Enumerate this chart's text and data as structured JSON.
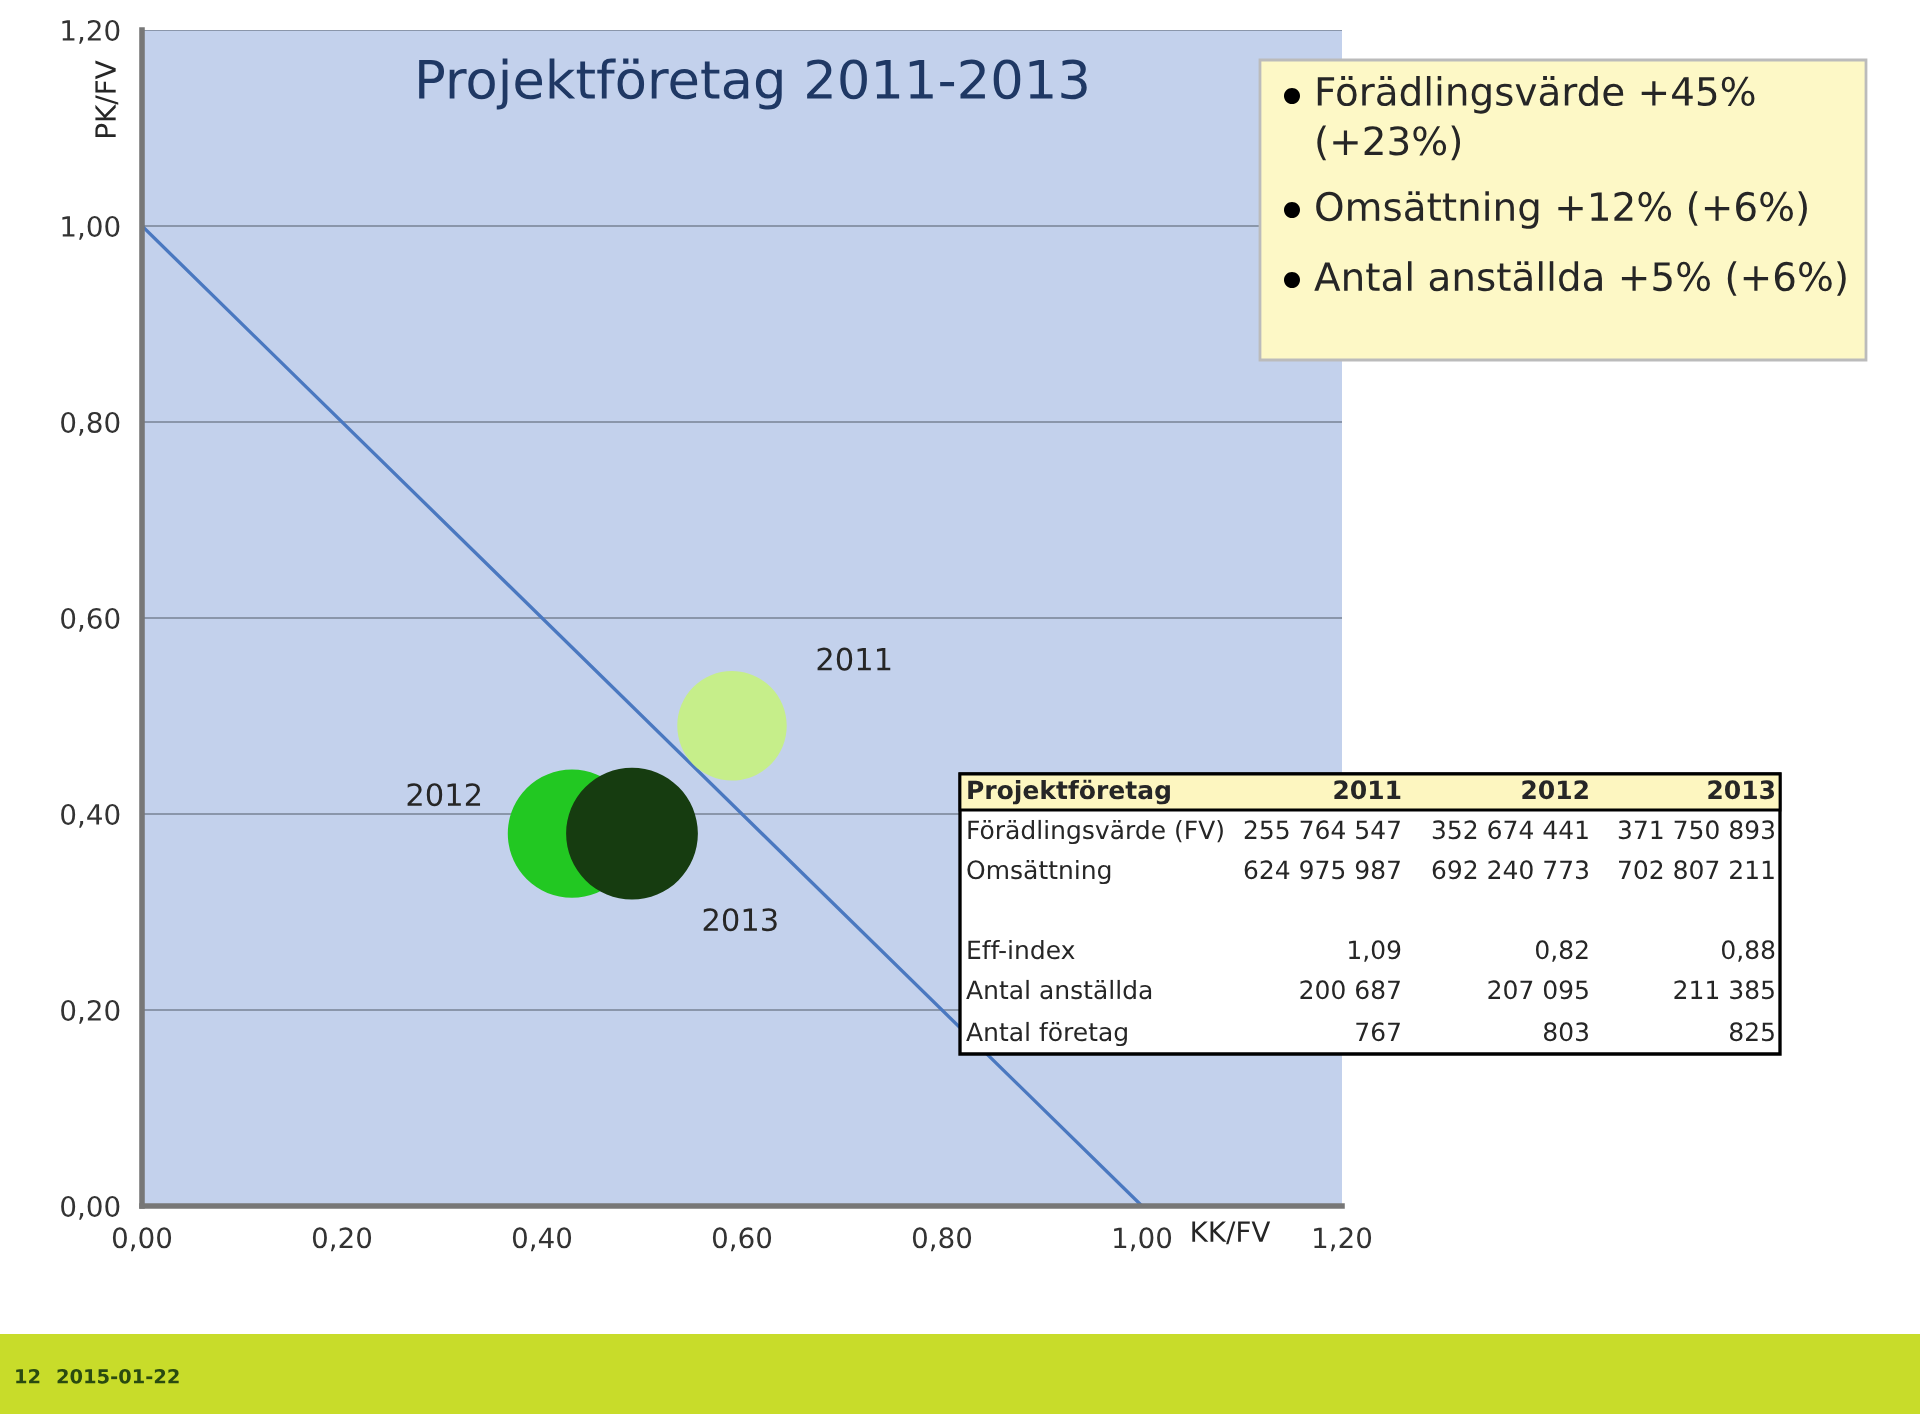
{
  "chart_data": {
    "type": "bubble",
    "title": "Projektföretag 2011-2013",
    "xlabel": "KK/FV",
    "ylabel": "PK/FV",
    "series": [
      {
        "name": "2011",
        "color": "#c6ee8a",
        "x": [
          0.59
        ],
        "values": [
          0.49
        ],
        "sizes": [
          0.69
        ]
      },
      {
        "name": "2012",
        "color": "#22c822",
        "x": [
          0.43
        ],
        "values": [
          0.38
        ],
        "sizes": [
          0.95
        ]
      },
      {
        "name": "2013",
        "color": "#163c10",
        "x": [
          0.49
        ],
        "values": [
          0.38
        ],
        "sizes": [
          1
        ]
      },
      {
        "type": "line",
        "color": "#4a78c0",
        "x": [
          0,
          1
        ],
        "values": [
          1,
          0
        ]
      }
    ],
    "xlim": [
      0,
      1.2
    ],
    "ylim": [
      0,
      1.2
    ],
    "xticks": [
      {
        "value": 0,
        "label": "0,00"
      },
      {
        "value": 0.2,
        "label": "0,20"
      },
      {
        "value": 0.4,
        "label": "0,40"
      },
      {
        "value": 0.6,
        "label": "0,60"
      },
      {
        "value": 0.8,
        "label": "0,80"
      },
      {
        "value": 1.0,
        "label": "1,00"
      },
      {
        "value": 1.2,
        "label": "1,20"
      }
    ],
    "yticks": [
      {
        "value": 0,
        "label": "0,00"
      },
      {
        "value": 0.2,
        "label": "0,20"
      },
      {
        "value": 0.4,
        "label": "0,40"
      },
      {
        "value": 0.6,
        "label": "0,60"
      },
      {
        "value": 0.8,
        "label": "0,80"
      },
      {
        "value": 1.0,
        "label": "1,00"
      },
      {
        "value": 1.2,
        "label": "1,20"
      }
    ],
    "grid": "y",
    "legend": false,
    "annotations": [
      "Förädlingsvärde +45%\n(+23%)",
      "Omsättning +12% (+6%)",
      "Antal anställda +5% (+6%)",
      "Projektföretag",
      "2011",
      "2012",
      "2013",
      "Förädlingsvärde (FV)",
      "255 764 547",
      "352 674 441",
      "371 750 893",
      "Omsättning",
      "624 975 987",
      "692 240 773",
      "702 807 211",
      "Eff-index",
      "1,09",
      "0,82",
      "0,88",
      "Antal anställda",
      "200 687",
      "207 095",
      "211 385",
      "Antal företag",
      "767",
      "803",
      "825",
      "12",
      "2015-01-22"
    ]
  }
}
